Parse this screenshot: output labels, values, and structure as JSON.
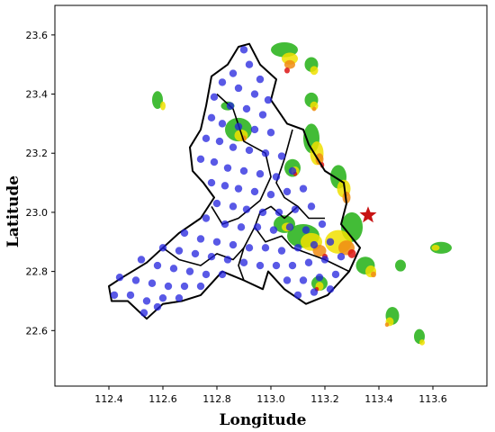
{
  "chart_data": {
    "type": "scatter",
    "title": "",
    "xlabel": "Longitude",
    "ylabel": "Latitude",
    "xlim": [
      112.2,
      113.8
    ],
    "ylim": [
      22.4,
      23.7
    ],
    "xticks": [
      "112.4",
      "112.6",
      "112.8",
      "113.0",
      "113.2",
      "113.4",
      "113.6"
    ],
    "yticks": [
      "22.6",
      "22.8",
      "23.0",
      "23.2",
      "23.4",
      "23.6"
    ],
    "grid": false,
    "colors": {
      "station_points": "#2222dd",
      "boundary": "#000000",
      "star": "#c81414",
      "radar_low": "#22b014",
      "radar_mid": "#f0e000",
      "radar_high": "#f08c14",
      "radar_max": "#dc1414"
    },
    "marker_star": {
      "x": 113.36,
      "y": 22.99,
      "icon": "star"
    },
    "boundary_outer": [
      [
        112.92,
        23.57
      ],
      [
        112.96,
        23.5
      ],
      [
        113.02,
        23.45
      ],
      [
        113.0,
        23.38
      ],
      [
        113.06,
        23.3
      ],
      [
        113.12,
        23.28
      ],
      [
        113.14,
        23.23
      ],
      [
        113.2,
        23.14
      ],
      [
        113.27,
        23.1
      ],
      [
        113.28,
        23.03
      ],
      [
        113.26,
        22.96
      ],
      [
        113.33,
        22.88
      ],
      [
        113.29,
        22.8
      ],
      [
        113.21,
        22.72
      ],
      [
        113.13,
        22.69
      ],
      [
        113.05,
        22.74
      ],
      [
        112.99,
        22.8
      ],
      [
        112.97,
        22.74
      ],
      [
        112.9,
        22.77
      ],
      [
        112.82,
        22.8
      ],
      [
        112.74,
        22.72
      ],
      [
        112.67,
        22.7
      ],
      [
        112.6,
        22.69
      ],
      [
        112.54,
        22.64
      ],
      [
        112.47,
        22.7
      ],
      [
        112.41,
        22.7
      ],
      [
        112.4,
        22.75
      ],
      [
        112.45,
        22.78
      ],
      [
        112.54,
        22.83
      ],
      [
        112.6,
        22.88
      ],
      [
        112.66,
        22.93
      ],
      [
        112.74,
        22.98
      ],
      [
        112.79,
        23.05
      ],
      [
        112.75,
        23.1
      ],
      [
        112.71,
        23.14
      ],
      [
        112.7,
        23.22
      ],
      [
        112.74,
        23.28
      ],
      [
        112.76,
        23.36
      ],
      [
        112.78,
        23.46
      ],
      [
        112.84,
        23.5
      ],
      [
        112.88,
        23.56
      ],
      [
        112.92,
        23.57
      ]
    ],
    "boundary_inner": [
      [
        [
          112.8,
          23.4
        ],
        [
          112.86,
          23.35
        ],
        [
          112.9,
          23.24
        ],
        [
          112.98,
          23.2
        ],
        [
          113.0,
          23.12
        ],
        [
          112.96,
          23.04
        ],
        [
          112.88,
          22.98
        ],
        [
          112.82,
          22.96
        ],
        [
          112.78,
          23.02
        ]
      ],
      [
        [
          113.08,
          23.28
        ],
        [
          113.05,
          23.18
        ],
        [
          113.02,
          23.1
        ],
        [
          113.05,
          23.05
        ],
        [
          113.1,
          23.02
        ],
        [
          113.14,
          22.98
        ],
        [
          113.2,
          22.98
        ]
      ],
      [
        [
          113.1,
          23.02
        ],
        [
          113.05,
          22.98
        ],
        [
          113.0,
          23.02
        ],
        [
          112.96,
          23.0
        ],
        [
          112.94,
          22.95
        ],
        [
          112.98,
          22.9
        ],
        [
          113.04,
          22.92
        ],
        [
          113.08,
          22.88
        ],
        [
          113.14,
          22.86
        ],
        [
          113.2,
          22.84
        ],
        [
          113.29,
          22.8
        ]
      ],
      [
        [
          112.94,
          22.95
        ],
        [
          112.9,
          22.88
        ],
        [
          112.88,
          22.82
        ],
        [
          112.9,
          22.77
        ]
      ],
      [
        [
          112.6,
          22.88
        ],
        [
          112.66,
          22.84
        ],
        [
          112.74,
          22.82
        ],
        [
          112.8,
          22.86
        ],
        [
          112.86,
          22.84
        ],
        [
          112.9,
          22.88
        ]
      ]
    ],
    "stations": [
      [
        112.9,
        23.55
      ],
      [
        112.92,
        23.5
      ],
      [
        112.86,
        23.47
      ],
      [
        112.96,
        23.45
      ],
      [
        112.82,
        23.44
      ],
      [
        112.88,
        23.42
      ],
      [
        112.94,
        23.4
      ],
      [
        112.79,
        23.39
      ],
      [
        112.99,
        23.38
      ],
      [
        112.85,
        23.36
      ],
      [
        112.91,
        23.35
      ],
      [
        112.97,
        23.33
      ],
      [
        112.78,
        23.32
      ],
      [
        112.82,
        23.3
      ],
      [
        112.88,
        23.29
      ],
      [
        112.94,
        23.28
      ],
      [
        113.0,
        23.27
      ],
      [
        112.76,
        23.25
      ],
      [
        112.81,
        23.24
      ],
      [
        112.86,
        23.22
      ],
      [
        112.92,
        23.21
      ],
      [
        112.98,
        23.2
      ],
      [
        113.04,
        23.19
      ],
      [
        112.74,
        23.18
      ],
      [
        112.79,
        23.17
      ],
      [
        112.84,
        23.15
      ],
      [
        112.9,
        23.14
      ],
      [
        112.96,
        23.13
      ],
      [
        113.02,
        23.12
      ],
      [
        113.08,
        23.14
      ],
      [
        112.78,
        23.1
      ],
      [
        112.83,
        23.09
      ],
      [
        112.88,
        23.08
      ],
      [
        112.94,
        23.07
      ],
      [
        113.0,
        23.06
      ],
      [
        113.06,
        23.07
      ],
      [
        113.12,
        23.08
      ],
      [
        112.8,
        23.03
      ],
      [
        112.86,
        23.02
      ],
      [
        112.91,
        23.01
      ],
      [
        112.97,
        23.0
      ],
      [
        113.03,
        23.0
      ],
      [
        113.09,
        23.01
      ],
      [
        113.15,
        23.02
      ],
      [
        112.76,
        22.98
      ],
      [
        112.83,
        22.96
      ],
      [
        112.89,
        22.95
      ],
      [
        112.95,
        22.95
      ],
      [
        113.01,
        22.94
      ],
      [
        113.07,
        22.95
      ],
      [
        113.13,
        22.94
      ],
      [
        113.19,
        22.96
      ],
      [
        112.68,
        22.93
      ],
      [
        112.74,
        22.91
      ],
      [
        112.8,
        22.9
      ],
      [
        112.86,
        22.89
      ],
      [
        112.92,
        22.88
      ],
      [
        112.98,
        22.88
      ],
      [
        113.04,
        22.87
      ],
      [
        113.1,
        22.88
      ],
      [
        113.16,
        22.89
      ],
      [
        113.22,
        22.9
      ],
      [
        112.6,
        22.88
      ],
      [
        112.66,
        22.87
      ],
      [
        112.72,
        22.86
      ],
      [
        112.78,
        22.85
      ],
      [
        112.84,
        22.84
      ],
      [
        112.9,
        22.83
      ],
      [
        112.96,
        22.82
      ],
      [
        113.02,
        22.82
      ],
      [
        113.08,
        22.82
      ],
      [
        113.14,
        22.83
      ],
      [
        113.2,
        22.84
      ],
      [
        113.26,
        22.85
      ],
      [
        112.52,
        22.84
      ],
      [
        112.58,
        22.82
      ],
      [
        112.64,
        22.81
      ],
      [
        112.7,
        22.8
      ],
      [
        112.76,
        22.79
      ],
      [
        112.82,
        22.79
      ],
      [
        113.06,
        22.77
      ],
      [
        113.12,
        22.77
      ],
      [
        113.18,
        22.78
      ],
      [
        113.24,
        22.79
      ],
      [
        112.44,
        22.78
      ],
      [
        112.5,
        22.77
      ],
      [
        112.56,
        22.76
      ],
      [
        112.62,
        22.75
      ],
      [
        112.68,
        22.75
      ],
      [
        112.74,
        22.75
      ],
      [
        113.1,
        22.72
      ],
      [
        113.16,
        22.73
      ],
      [
        113.22,
        22.74
      ],
      [
        112.42,
        22.72
      ],
      [
        112.48,
        22.72
      ],
      [
        112.54,
        22.7
      ],
      [
        112.6,
        22.71
      ],
      [
        112.66,
        22.71
      ],
      [
        112.53,
        22.66
      ],
      [
        112.58,
        22.68
      ]
    ],
    "radar_cells": [
      [
        113.05,
        23.55,
        0.1,
        0.05,
        0
      ],
      [
        113.07,
        23.52,
        0.06,
        0.04,
        1
      ],
      [
        113.07,
        23.5,
        0.04,
        0.03,
        2
      ],
      [
        113.06,
        23.48,
        0.02,
        0.02,
        3
      ],
      [
        113.15,
        23.5,
        0.05,
        0.05,
        0
      ],
      [
        113.16,
        23.48,
        0.03,
        0.03,
        1
      ],
      [
        112.58,
        23.38,
        0.04,
        0.06,
        0
      ],
      [
        112.6,
        23.36,
        0.02,
        0.03,
        1
      ],
      [
        112.84,
        23.36,
        0.05,
        0.03,
        0
      ],
      [
        113.15,
        23.38,
        0.05,
        0.05,
        0
      ],
      [
        113.16,
        23.36,
        0.03,
        0.03,
        1
      ],
      [
        113.16,
        23.35,
        0.015,
        0.015,
        2
      ],
      [
        112.88,
        23.28,
        0.1,
        0.08,
        0
      ],
      [
        112.89,
        23.26,
        0.05,
        0.04,
        1
      ],
      [
        112.9,
        23.25,
        0.02,
        0.02,
        2
      ],
      [
        113.15,
        23.25,
        0.06,
        0.1,
        0
      ],
      [
        113.17,
        23.2,
        0.05,
        0.08,
        1
      ],
      [
        113.18,
        23.18,
        0.03,
        0.04,
        2
      ],
      [
        113.19,
        23.16,
        0.015,
        0.02,
        3
      ],
      [
        113.08,
        23.15,
        0.06,
        0.06,
        0
      ],
      [
        113.09,
        23.14,
        0.03,
        0.03,
        1
      ],
      [
        113.09,
        23.13,
        0.015,
        0.015,
        3
      ],
      [
        113.25,
        23.12,
        0.06,
        0.08,
        0
      ],
      [
        113.27,
        23.08,
        0.05,
        0.06,
        1
      ],
      [
        113.28,
        23.05,
        0.03,
        0.04,
        2
      ],
      [
        113.3,
        22.95,
        0.08,
        0.1,
        0
      ],
      [
        113.25,
        22.9,
        0.1,
        0.08,
        1
      ],
      [
        113.28,
        22.88,
        0.06,
        0.05,
        2
      ],
      [
        113.3,
        22.86,
        0.03,
        0.03,
        3
      ],
      [
        113.12,
        22.92,
        0.12,
        0.08,
        0
      ],
      [
        113.15,
        22.9,
        0.08,
        0.06,
        1
      ],
      [
        113.18,
        22.87,
        0.05,
        0.04,
        2
      ],
      [
        113.2,
        22.85,
        0.02,
        0.02,
        3
      ],
      [
        113.05,
        22.96,
        0.08,
        0.06,
        0
      ],
      [
        113.06,
        22.95,
        0.04,
        0.03,
        1
      ],
      [
        113.35,
        22.82,
        0.07,
        0.06,
        0
      ],
      [
        113.37,
        22.8,
        0.04,
        0.04,
        1
      ],
      [
        113.38,
        22.79,
        0.02,
        0.02,
        2
      ],
      [
        113.18,
        22.76,
        0.06,
        0.05,
        0
      ],
      [
        113.18,
        22.75,
        0.03,
        0.03,
        1
      ],
      [
        113.17,
        22.74,
        0.015,
        0.015,
        3
      ],
      [
        113.45,
        22.65,
        0.05,
        0.06,
        0
      ],
      [
        113.44,
        22.63,
        0.03,
        0.03,
        1
      ],
      [
        113.43,
        22.62,
        0.015,
        0.015,
        2
      ],
      [
        113.55,
        22.58,
        0.04,
        0.05,
        0
      ],
      [
        113.56,
        22.56,
        0.02,
        0.02,
        1
      ],
      [
        113.63,
        22.88,
        0.08,
        0.04,
        0
      ],
      [
        113.61,
        22.88,
        0.03,
        0.02,
        1
      ],
      [
        113.48,
        22.82,
        0.04,
        0.04,
        0
      ]
    ]
  }
}
